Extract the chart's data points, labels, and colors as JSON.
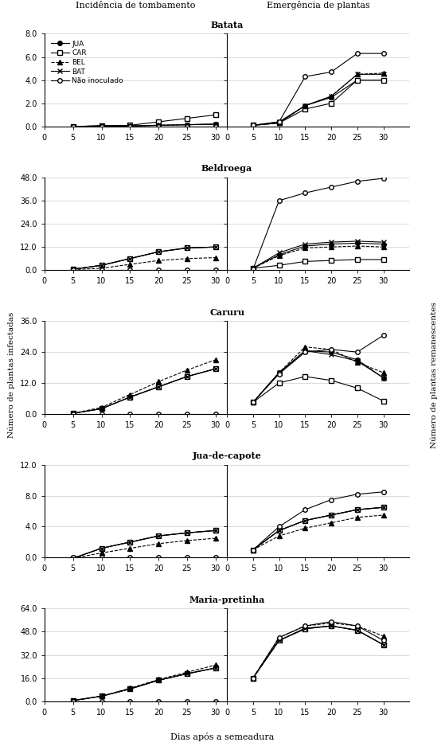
{
  "days": [
    5,
    10,
    15,
    20,
    25,
    30
  ],
  "series_labels": [
    "JUA",
    "CAR",
    "BEL",
    "BAT",
    "Não inoculado"
  ],
  "series_styles": [
    {
      "marker": "o",
      "linestyle": "-",
      "fillstyle": "full"
    },
    {
      "marker": "s",
      "linestyle": "-",
      "fillstyle": "none"
    },
    {
      "marker": "^",
      "linestyle": "--",
      "fillstyle": "full"
    },
    {
      "marker": "x",
      "linestyle": "-",
      "fillstyle": "full"
    },
    {
      "marker": "o",
      "linestyle": "-",
      "fillstyle": "none"
    }
  ],
  "panels": [
    {
      "title": "Batata",
      "left_ylim": [
        0.0,
        8.0
      ],
      "left_yticks": [
        0.0,
        2.0,
        4.0,
        6.0,
        8.0
      ],
      "right_ylim": [
        0.0,
        8.0
      ],
      "right_yticks": [
        0.0,
        2.0,
        4.0,
        6.0,
        8.0
      ],
      "left_data": [
        [
          0.0,
          0.05,
          0.05,
          0.1,
          0.15,
          0.2
        ],
        [
          0.0,
          0.05,
          0.1,
          0.4,
          0.7,
          1.0
        ],
        [
          0.0,
          0.05,
          0.05,
          0.1,
          0.15,
          0.2
        ],
        [
          0.0,
          0.05,
          0.05,
          0.1,
          0.15,
          0.2
        ],
        [
          0.0,
          0.0,
          0.0,
          0.0,
          0.0,
          0.0
        ]
      ],
      "right_data": [
        [
          0.1,
          0.3,
          1.8,
          2.5,
          4.0,
          4.0
        ],
        [
          0.1,
          0.3,
          1.5,
          2.0,
          4.0,
          4.0
        ],
        [
          0.1,
          0.3,
          1.8,
          2.6,
          4.5,
          4.6
        ],
        [
          0.1,
          0.4,
          1.8,
          2.6,
          4.5,
          4.5
        ],
        [
          0.1,
          0.4,
          4.3,
          4.7,
          6.3,
          6.3
        ]
      ]
    },
    {
      "title": "Beldroega",
      "left_ylim": [
        0.0,
        48.0
      ],
      "left_yticks": [
        0.0,
        12.0,
        24.0,
        36.0,
        48.0
      ],
      "right_ylim": [
        0.0,
        48.0
      ],
      "right_yticks": [
        0.0,
        12.0,
        24.0,
        36.0,
        48.0
      ],
      "left_data": [
        [
          0.5,
          2.5,
          6.0,
          9.5,
          11.5,
          12.0
        ],
        [
          0.5,
          2.5,
          6.0,
          9.5,
          11.5,
          12.0
        ],
        [
          0.3,
          1.0,
          3.0,
          5.0,
          6.0,
          6.5
        ],
        [
          0.5,
          2.5,
          6.0,
          9.5,
          11.5,
          12.0
        ],
        [
          0.0,
          0.0,
          0.0,
          0.0,
          0.0,
          0.0
        ]
      ],
      "right_data": [
        [
          1.0,
          8.0,
          12.5,
          13.5,
          14.0,
          13.5
        ],
        [
          1.0,
          2.5,
          4.5,
          5.0,
          5.5,
          5.5
        ],
        [
          1.0,
          7.5,
          11.5,
          12.0,
          12.5,
          12.0
        ],
        [
          1.0,
          9.0,
          13.5,
          14.5,
          15.0,
          14.5
        ],
        [
          0.5,
          36.0,
          40.0,
          43.0,
          46.0,
          47.5
        ]
      ]
    },
    {
      "title": "Caruru",
      "left_ylim": [
        0.0,
        36.0
      ],
      "left_yticks": [
        0.0,
        12.0,
        24.0,
        36.0
      ],
      "right_ylim": [
        0.0,
        36.0
      ],
      "right_yticks": [
        0.0,
        12.0,
        24.0,
        36.0
      ],
      "left_data": [
        [
          0.2,
          2.0,
          6.5,
          10.5,
          14.5,
          17.5
        ],
        [
          0.2,
          2.0,
          6.5,
          10.5,
          14.5,
          17.5
        ],
        [
          0.2,
          2.5,
          7.5,
          12.5,
          17.0,
          21.0
        ],
        [
          0.2,
          2.0,
          6.5,
          10.5,
          14.5,
          17.5
        ],
        [
          0.0,
          0.0,
          0.0,
          0.0,
          0.0,
          0.0
        ]
      ],
      "right_data": [
        [
          4.5,
          16.0,
          24.5,
          24.0,
          21.0,
          14.0
        ],
        [
          4.5,
          12.0,
          14.5,
          13.0,
          10.0,
          5.0
        ],
        [
          4.5,
          16.0,
          26.0,
          25.0,
          20.0,
          16.0
        ],
        [
          4.5,
          16.0,
          24.5,
          23.0,
          20.5,
          14.0
        ],
        [
          4.5,
          15.5,
          24.0,
          25.0,
          24.0,
          30.5
        ]
      ]
    },
    {
      "title": "Jua-de-capote",
      "left_ylim": [
        0.0,
        12.0
      ],
      "left_yticks": [
        0.0,
        4.0,
        8.0,
        12.0
      ],
      "right_ylim": [
        0.0,
        12.0
      ],
      "right_yticks": [
        0.0,
        4.0,
        8.0,
        12.0
      ],
      "left_data": [
        [
          -0.1,
          1.2,
          2.0,
          2.8,
          3.2,
          3.5
        ],
        [
          -0.1,
          1.2,
          2.0,
          2.8,
          3.2,
          3.5
        ],
        [
          -0.1,
          0.6,
          1.2,
          1.8,
          2.2,
          2.5
        ],
        [
          -0.1,
          1.2,
          2.0,
          2.8,
          3.2,
          3.5
        ],
        [
          0.0,
          0.0,
          0.0,
          0.0,
          0.0,
          0.0
        ]
      ],
      "right_data": [
        [
          1.0,
          3.5,
          4.8,
          5.5,
          6.2,
          6.5
        ],
        [
          1.0,
          3.5,
          4.8,
          5.5,
          6.2,
          6.5
        ],
        [
          1.0,
          2.8,
          3.8,
          4.5,
          5.2,
          5.5
        ],
        [
          1.0,
          3.5,
          4.8,
          5.5,
          6.2,
          6.5
        ],
        [
          1.0,
          4.0,
          6.2,
          7.5,
          8.2,
          8.5
        ]
      ]
    },
    {
      "title": "Maria-pretinha",
      "left_ylim": [
        0.0,
        64.0
      ],
      "left_yticks": [
        0.0,
        16.0,
        32.0,
        48.0,
        64.0
      ],
      "right_ylim": [
        0.0,
        64.0
      ],
      "right_yticks": [
        0.0,
        16.0,
        32.0,
        48.0,
        64.0
      ],
      "left_data": [
        [
          0.5,
          3.5,
          8.5,
          14.5,
          19.0,
          23.0
        ],
        [
          0.5,
          3.5,
          8.5,
          14.5,
          19.0,
          23.0
        ],
        [
          0.5,
          3.5,
          9.0,
          15.0,
          20.0,
          25.0
        ],
        [
          0.5,
          3.5,
          8.5,
          14.5,
          19.0,
          23.0
        ],
        [
          0.0,
          0.0,
          0.0,
          0.0,
          0.0,
          0.0
        ]
      ],
      "right_data": [
        [
          16.0,
          42.0,
          50.0,
          52.0,
          49.0,
          39.0
        ],
        [
          16.0,
          42.0,
          50.0,
          52.0,
          49.0,
          39.0
        ],
        [
          16.0,
          44.0,
          52.0,
          54.0,
          52.0,
          45.0
        ],
        [
          16.0,
          42.0,
          50.5,
          52.0,
          49.0,
          39.0
        ],
        [
          16.0,
          44.0,
          52.0,
          55.0,
          52.0,
          42.0
        ]
      ]
    }
  ],
  "col_titles": [
    "Incidência de tombamento",
    "Emergência de plantas"
  ],
  "xlabel": "Dias após a semeadura",
  "left_ylabel": "Número de plantas infectadas",
  "right_ylabel": "Número de plantas remanescentes",
  "background_color": "#ffffff",
  "grid_color": "#cccccc",
  "left_xlim": [
    0,
    32
  ],
  "left_xticks": [
    0,
    5,
    10,
    15,
    20,
    25,
    30
  ],
  "right_xlim": [
    0,
    35
  ],
  "right_xticks": [
    0,
    5,
    10,
    15,
    20,
    25,
    30
  ]
}
